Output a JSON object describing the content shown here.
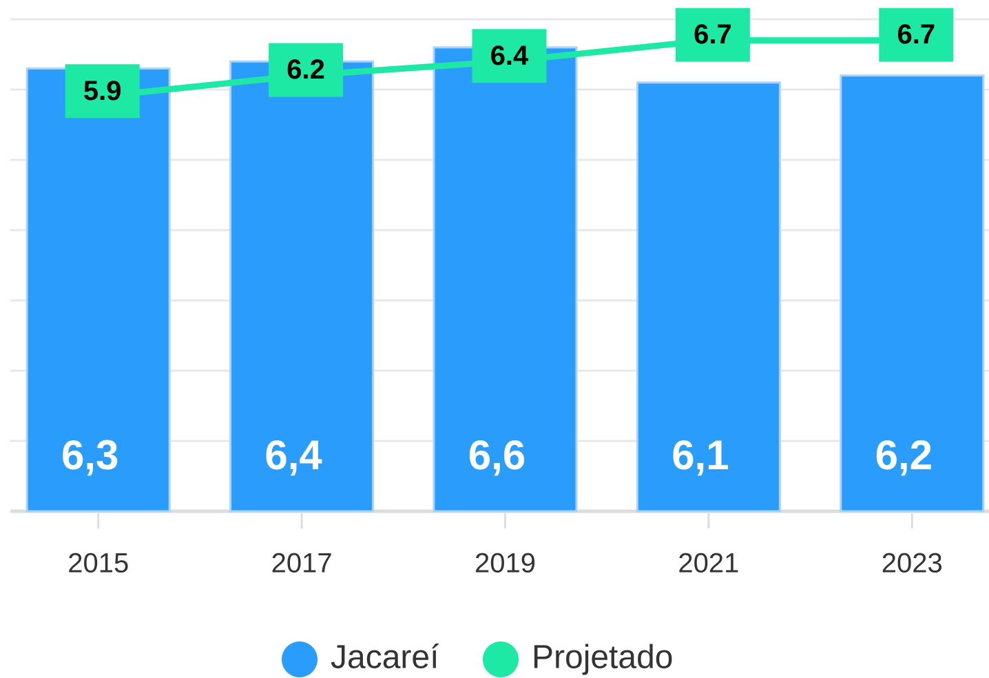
{
  "chart_data": {
    "type": "bar-line",
    "categories": [
      "2015",
      "2017",
      "2019",
      "2021",
      "2023"
    ],
    "series": [
      {
        "name": "Jacareí",
        "type": "bar",
        "color": "#2a9dfc",
        "values": [
          6.3,
          6.4,
          6.6,
          6.1,
          6.2
        ],
        "value_labels": [
          "6,3",
          "6,4",
          "6,6",
          "6,1",
          "6,2"
        ]
      },
      {
        "name": "Projetado",
        "type": "line",
        "color": "#1de9a5",
        "values": [
          5.9,
          6.2,
          6.4,
          6.7,
          6.7
        ]
      }
    ],
    "ylim": [
      0,
      7
    ],
    "yticks": [
      0,
      1,
      2,
      3,
      4,
      5,
      6,
      7
    ],
    "grid": true,
    "legend": "bottom"
  }
}
